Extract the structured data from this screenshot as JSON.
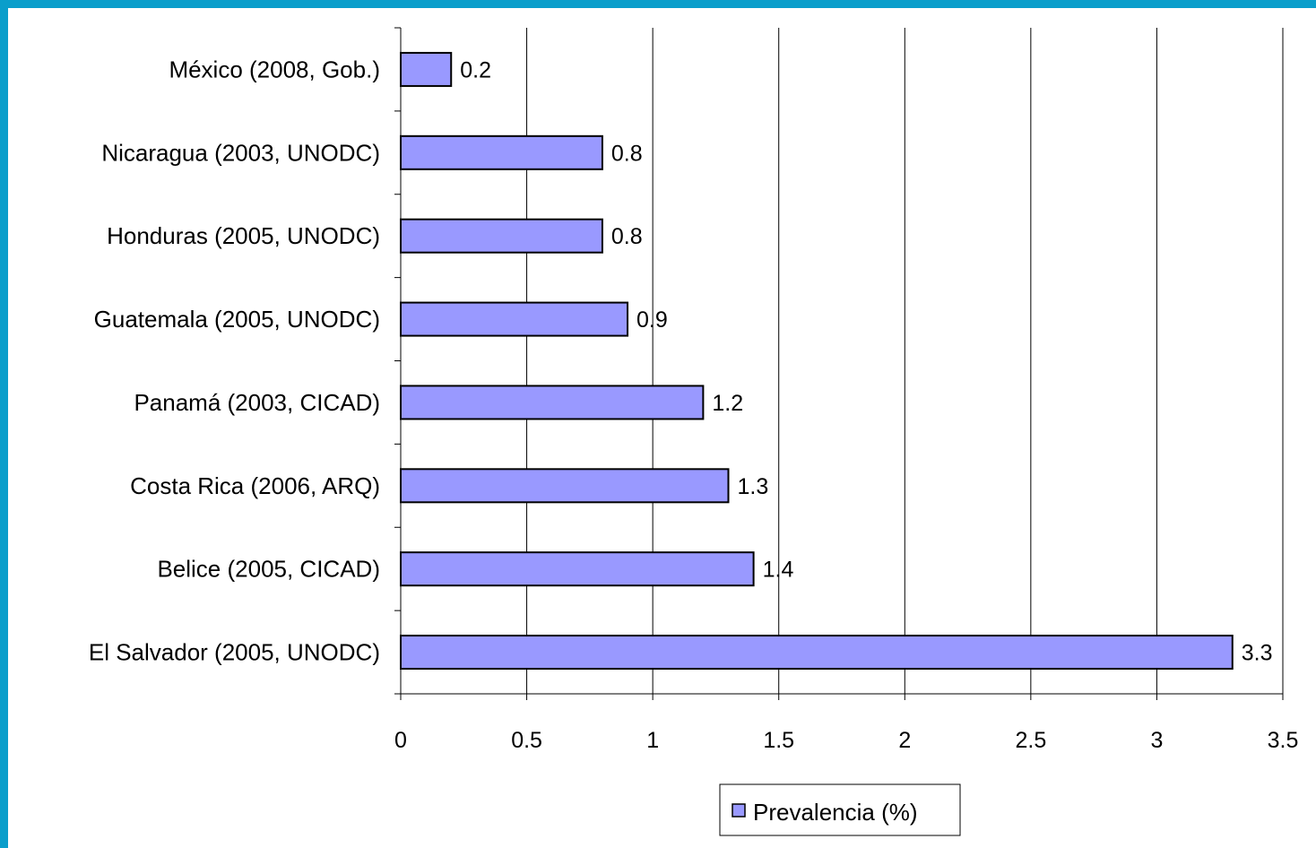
{
  "chart_data": {
    "type": "bar",
    "orientation": "horizontal",
    "categories": [
      "México (2008, Gob.)",
      "Nicaragua (2003, UNODC)",
      "Honduras (2005, UNODC)",
      "Guatemala (2005, UNODC)",
      "Panamá (2003, CICAD)",
      "Costa Rica (2006, ARQ)",
      "Belice (2005, CICAD)",
      "El Salvador (2005, UNODC)"
    ],
    "series": [
      {
        "name": "Prevalencia (%)",
        "values": [
          0.2,
          0.8,
          0.8,
          0.9,
          1.2,
          1.3,
          1.4,
          3.3
        ],
        "color": "#9999ff"
      }
    ],
    "data_labels": [
      "0.2",
      "0.8",
      "0.8",
      "0.9",
      "1.2",
      "1.3",
      "1.4",
      "3.3"
    ],
    "xlim": [
      0,
      3.5
    ],
    "x_ticks": [
      "0",
      "0.5",
      "1",
      "1.5",
      "2",
      "2.5",
      "3",
      "3.5"
    ],
    "grid": "vertical",
    "legend": "bottom"
  },
  "colors": {
    "frame_border": "#0a9ecb",
    "bar_fill": "#9999ff",
    "bar_stroke": "#000000"
  }
}
